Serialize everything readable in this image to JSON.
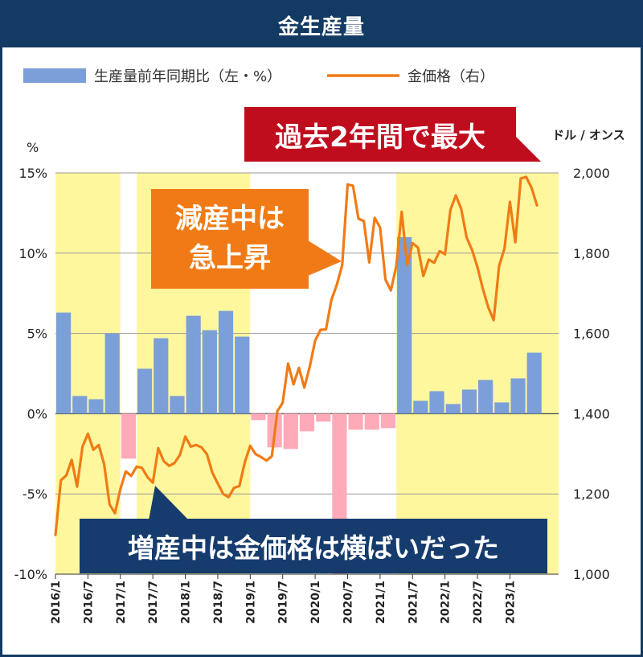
{
  "title": "金生産量",
  "legend": {
    "bar_label": "生産量前年同期比（左・%）",
    "line_label": "金価格（右）"
  },
  "callouts": {
    "top": "過去2年間で最大",
    "middle_line1": "減産中は",
    "middle_line2": "急上昇",
    "bottom": "増産中は金価格は横ばいだった"
  },
  "colors": {
    "background_band": "#fff79e",
    "bar_positive": "#7b9fd8",
    "bar_negative": "#ffaab8",
    "line": "#f07b16",
    "title_bar": "#133a62",
    "callout_top": "#c00d1e",
    "callout_middle": "#f07b16",
    "callout_bottom": "#163c6e"
  },
  "chart_data": {
    "type": "bar+line",
    "left_axis": {
      "label": "%",
      "ylim": [
        -10,
        15
      ],
      "ticks": [
        "15%",
        "10%",
        "5%",
        "0%",
        "-5%",
        "-10%"
      ]
    },
    "right_axis": {
      "label": "ドル / オンス",
      "ylim": [
        1000,
        2000
      ],
      "ticks": [
        "2,000",
        "1,800",
        "1,600",
        "1,400",
        "1,200",
        "1,000"
      ]
    },
    "x_tick_labels": [
      "2016/1",
      "2016/7",
      "2017/1",
      "2017/7",
      "2018/1",
      "2018/7",
      "2019/1",
      "2019/7",
      "2020/1",
      "2020/7",
      "2021/1",
      "2021/7",
      "2022/1",
      "2022/7",
      "2023/1"
    ],
    "grid": "horizontal",
    "shaded_periods": [
      {
        "start": "2016/1",
        "end": "2017/1",
        "meaning": "increase"
      },
      {
        "start": "2017/4",
        "end": "2019/1",
        "meaning": "increase"
      },
      {
        "start": "2021/4",
        "end": "2023/10",
        "meaning": "increase"
      }
    ],
    "bars": {
      "name": "生産量前年同期比（左・%）",
      "quarters": [
        "2016/1",
        "2016/4",
        "2016/7",
        "2016/10",
        "2017/1",
        "2017/4",
        "2017/7",
        "2017/10",
        "2018/1",
        "2018/4",
        "2018/7",
        "2018/10",
        "2019/1",
        "2019/4",
        "2019/7",
        "2019/10",
        "2020/1",
        "2020/4",
        "2020/7",
        "2020/10",
        "2021/1",
        "2021/4",
        "2021/7",
        "2021/10",
        "2022/1",
        "2022/4",
        "2022/7",
        "2022/10",
        "2023/1",
        "2023/4"
      ],
      "values": [
        6.3,
        1.1,
        0.9,
        5.0,
        -2.8,
        2.8,
        4.7,
        1.1,
        6.1,
        5.2,
        6.4,
        4.8,
        -0.4,
        -2.1,
        -2.2,
        -1.1,
        -0.5,
        -10.0,
        -1.0,
        -1.0,
        -0.9,
        11.0,
        0.8,
        1.4,
        0.6,
        1.5,
        2.1,
        0.7,
        2.2,
        3.8
      ]
    },
    "line": {
      "name": "金価格（右）",
      "months": [
        "2016/1",
        "2016/2",
        "2016/3",
        "2016/4",
        "2016/5",
        "2016/6",
        "2016/7",
        "2016/8",
        "2016/9",
        "2016/10",
        "2016/11",
        "2016/12",
        "2017/1",
        "2017/2",
        "2017/3",
        "2017/4",
        "2017/5",
        "2017/6",
        "2017/7",
        "2017/8",
        "2017/9",
        "2017/10",
        "2017/11",
        "2017/12",
        "2018/1",
        "2018/2",
        "2018/3",
        "2018/4",
        "2018/5",
        "2018/6",
        "2018/7",
        "2018/8",
        "2018/9",
        "2018/10",
        "2018/11",
        "2018/12",
        "2019/1",
        "2019/2",
        "2019/3",
        "2019/4",
        "2019/5",
        "2019/6",
        "2019/7",
        "2019/8",
        "2019/9",
        "2019/10",
        "2019/11",
        "2019/12",
        "2020/1",
        "2020/2",
        "2020/3",
        "2020/4",
        "2020/5",
        "2020/6",
        "2020/7",
        "2020/8",
        "2020/9",
        "2020/10",
        "2020/11",
        "2020/12",
        "2021/1",
        "2021/2",
        "2021/3",
        "2021/4",
        "2021/5",
        "2021/6",
        "2021/7",
        "2021/8",
        "2021/9",
        "2021/10",
        "2021/11",
        "2021/12",
        "2022/1",
        "2022/2",
        "2022/3",
        "2022/4",
        "2022/5",
        "2022/6",
        "2022/7",
        "2022/8",
        "2022/9",
        "2022/10",
        "2022/11",
        "2022/12",
        "2023/1",
        "2023/2",
        "2023/3",
        "2023/4",
        "2023/5",
        "2023/6"
      ],
      "values": [
        1098,
        1234,
        1246,
        1285,
        1218,
        1318,
        1350,
        1310,
        1322,
        1274,
        1174,
        1152,
        1212,
        1256,
        1245,
        1268,
        1265,
        1242,
        1228,
        1314,
        1282,
        1270,
        1277,
        1297,
        1343,
        1318,
        1322,
        1316,
        1299,
        1253,
        1226,
        1200,
        1192,
        1215,
        1220,
        1279,
        1320,
        1299,
        1292,
        1283,
        1294,
        1406,
        1427,
        1525,
        1473,
        1514,
        1465,
        1517,
        1582,
        1609,
        1610,
        1683,
        1721,
        1770,
        1971,
        1968,
        1886,
        1880,
        1777,
        1888,
        1864,
        1734,
        1707,
        1768,
        1903,
        1770,
        1825,
        1814,
        1743,
        1784,
        1776,
        1805,
        1797,
        1908,
        1944,
        1910,
        1839,
        1808,
        1765,
        1711,
        1665,
        1633,
        1768,
        1812,
        1928,
        1827,
        1986,
        1990,
        1963,
        1919
      ]
    }
  }
}
